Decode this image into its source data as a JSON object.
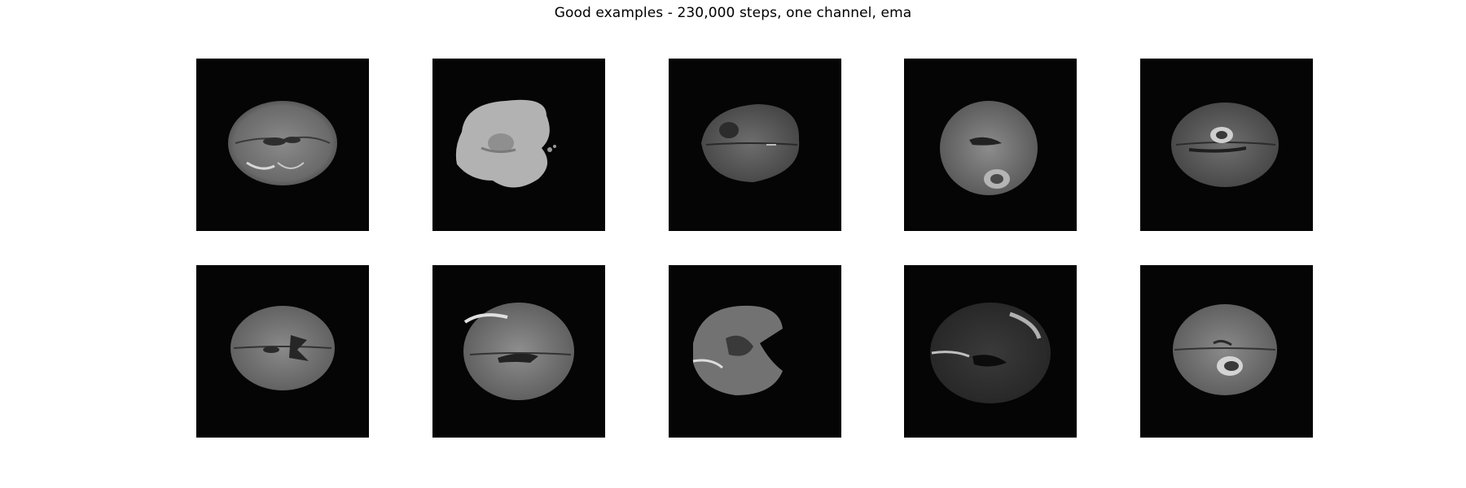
{
  "figure": {
    "title": "Good examples - 230,000 steps, one channel, ema"
  },
  "tiles": [
    {
      "label": "brain-mri-slice",
      "variant": "axial-wide"
    },
    {
      "label": "brain-mri-slice",
      "variant": "sagittal-bright"
    },
    {
      "label": "brain-mri-slice",
      "variant": "axial-dark"
    },
    {
      "label": "brain-mri-slice",
      "variant": "axial-lesion"
    },
    {
      "label": "brain-mri-slice",
      "variant": "axial-enhancing"
    },
    {
      "label": "brain-mri-slice",
      "variant": "axial-ventricles"
    },
    {
      "label": "brain-mri-slice",
      "variant": "axial-bright-edges"
    },
    {
      "label": "brain-mri-slice",
      "variant": "sagittal-cut"
    },
    {
      "label": "brain-mri-slice",
      "variant": "axial-dim"
    },
    {
      "label": "brain-mri-slice",
      "variant": "axial-lesion-2"
    }
  ]
}
